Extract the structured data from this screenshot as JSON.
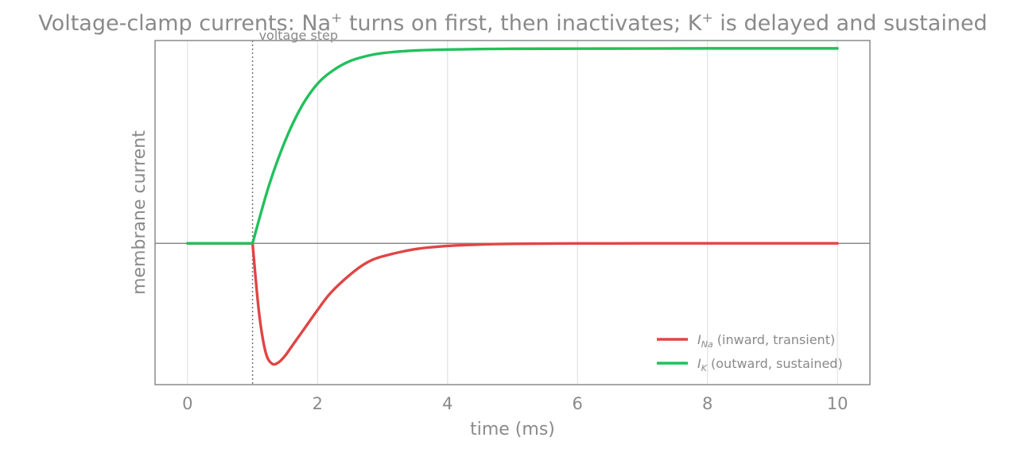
{
  "chart_data": {
    "type": "line",
    "title": {
      "part1": "Voltage-clamp currents: Na",
      "sup1": "+",
      "part2": " turns on first, then inactivates; K",
      "sup2": "+",
      "part3": " is delayed and sustained"
    },
    "xlabel": "time  (ms)",
    "ylabel": "membrane current",
    "xlim": [
      -0.5,
      10.5
    ],
    "ylim": [
      -1.08,
      1.55
    ],
    "xticks": [
      0,
      2,
      4,
      6,
      8,
      10
    ],
    "xtick_labels": [
      "0",
      "2",
      "4",
      "6",
      "8",
      "10"
    ],
    "grid": "vertical",
    "legend_position": "lower right",
    "zero_line": 0,
    "annotations": [
      {
        "type": "vline",
        "x": 1,
        "label": "voltage step"
      }
    ],
    "series": [
      {
        "name": "I_Na (inward, transient)",
        "symbol": "I",
        "subscript": "Na",
        "desc": " (inward, transient)",
        "color": "#e04545",
        "x": [
          0,
          1,
          1.1,
          1.2,
          1.3,
          1.4,
          1.5,
          1.6,
          1.8,
          2.0,
          2.2,
          2.5,
          2.75,
          3.0,
          3.5,
          4.0,
          4.5,
          5.0,
          6.0,
          7.0,
          8.0,
          10.0
        ],
        "y": [
          0,
          0,
          -0.53,
          -0.83,
          -0.92,
          -0.91,
          -0.86,
          -0.79,
          -0.65,
          -0.51,
          -0.38,
          -0.24,
          -0.15,
          -0.1,
          -0.045,
          -0.02,
          -0.009,
          -0.004,
          -0.001,
          0,
          0,
          0
        ]
      },
      {
        "name": "I_K (outward, sustained)",
        "symbol": "I",
        "subscript": "K",
        "desc": " (outward, sustained)",
        "color": "#22c05c",
        "x": [
          0,
          1,
          1.25,
          1.5,
          1.75,
          2.0,
          2.25,
          2.5,
          2.75,
          3.0,
          3.5,
          4.0,
          4.5,
          5.0,
          6.0,
          7.0,
          8.0,
          9.0,
          10.0
        ],
        "y": [
          0,
          0,
          0.438,
          0.781,
          1.042,
          1.22,
          1.325,
          1.393,
          1.431,
          1.454,
          1.474,
          1.481,
          1.485,
          1.487,
          1.488,
          1.489,
          1.49,
          1.49,
          1.49
        ]
      }
    ]
  }
}
